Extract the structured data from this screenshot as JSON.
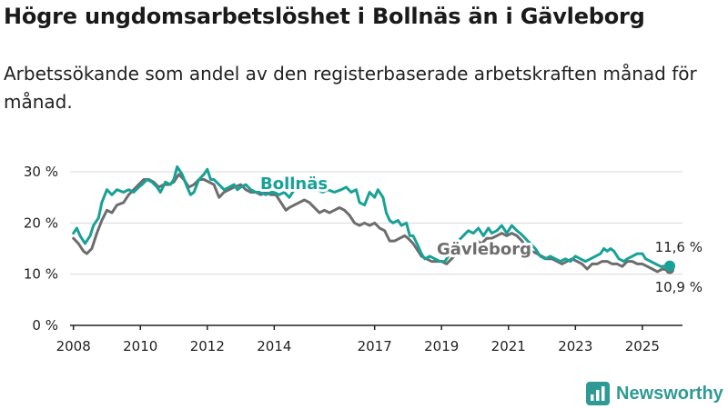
{
  "title": "Högre ungdomsarbetslöshet i Bollnäs än i Gävleborg",
  "subtitle": "Arbetssökande som andel av den registerbaserade arbetskraften månad för månad.",
  "brand": {
    "name": "Newsworthy",
    "icon": "newsworthy-bar-chart-icon"
  },
  "colors": {
    "bollnas": "#17a197",
    "gavleborg": "#6d6d6d",
    "grid": "#d9d9d9",
    "axis": "#222222",
    "text": "#222222"
  },
  "chart_data": {
    "type": "line",
    "title": "Högre ungdomsarbetslöshet i Bollnäs än i Gävleborg",
    "xlabel": "",
    "ylabel": "",
    "xlim": [
      2007.9,
      2026.2
    ],
    "ylim": [
      0,
      30
    ],
    "grid": true,
    "yticks": [
      0,
      10,
      20,
      30
    ],
    "ytick_labels": [
      "0 %",
      "10 %",
      "20 %",
      "30 %"
    ],
    "xticks": [
      2008,
      2010,
      2012,
      2014,
      2017,
      2019,
      2021,
      2023,
      2025
    ],
    "xtick_labels": [
      "2008",
      "2010",
      "2012",
      "2014",
      "2017",
      "2019",
      "2021",
      "2023",
      "2025"
    ],
    "series": [
      {
        "name": "Bollnäs",
        "label": "Bollnäs",
        "end_label": "11,6 %",
        "points": [
          [
            2008.0,
            18.0
          ],
          [
            2008.1,
            19.0
          ],
          [
            2008.2,
            17.5
          ],
          [
            2008.35,
            16.0
          ],
          [
            2008.5,
            17.5
          ],
          [
            2008.6,
            19.5
          ],
          [
            2008.75,
            21.0
          ],
          [
            2008.85,
            24.0
          ],
          [
            2009.0,
            26.5
          ],
          [
            2009.15,
            25.5
          ],
          [
            2009.3,
            26.5
          ],
          [
            2009.5,
            26.0
          ],
          [
            2009.65,
            26.5
          ],
          [
            2009.8,
            26.0
          ],
          [
            2009.95,
            27.0
          ],
          [
            2010.05,
            27.5
          ],
          [
            2010.2,
            28.5
          ],
          [
            2010.35,
            28.0
          ],
          [
            2010.5,
            27.0
          ],
          [
            2010.6,
            26.0
          ],
          [
            2010.75,
            28.0
          ],
          [
            2010.9,
            27.5
          ],
          [
            2011.0,
            28.5
          ],
          [
            2011.1,
            31.0
          ],
          [
            2011.25,
            29.5
          ],
          [
            2011.4,
            27.0
          ],
          [
            2011.5,
            25.5
          ],
          [
            2011.6,
            26.0
          ],
          [
            2011.75,
            28.5
          ],
          [
            2011.9,
            29.5
          ],
          [
            2012.0,
            30.5
          ],
          [
            2012.1,
            28.5
          ],
          [
            2012.2,
            28.5
          ],
          [
            2012.35,
            27.5
          ],
          [
            2012.5,
            26.5
          ],
          [
            2012.65,
            27.0
          ],
          [
            2012.8,
            27.5
          ],
          [
            2012.9,
            26.5
          ],
          [
            2013.0,
            27.0
          ],
          [
            2013.15,
            27.5
          ],
          [
            2013.3,
            26.5
          ],
          [
            2013.45,
            26.0
          ],
          [
            2013.6,
            26.0
          ],
          [
            2013.75,
            25.5
          ],
          [
            2013.9,
            26.0
          ],
          [
            2014.0,
            26.0
          ],
          [
            2014.15,
            25.5
          ],
          [
            2014.3,
            26.0
          ],
          [
            2014.45,
            25.0
          ],
          [
            2014.55,
            26.0
          ],
          [
            2014.7,
            27.5
          ],
          [
            2014.85,
            28.0
          ],
          [
            2015.0,
            27.5
          ],
          [
            2015.15,
            27.0
          ],
          [
            2015.3,
            26.5
          ],
          [
            2015.45,
            26.0
          ],
          [
            2015.6,
            26.5
          ],
          [
            2015.8,
            26.0
          ],
          [
            2016.0,
            26.5
          ],
          [
            2016.15,
            27.0
          ],
          [
            2016.3,
            26.0
          ],
          [
            2016.45,
            26.5
          ],
          [
            2016.55,
            24.0
          ],
          [
            2016.7,
            23.5
          ],
          [
            2016.85,
            26.0
          ],
          [
            2017.0,
            25.0
          ],
          [
            2017.1,
            26.5
          ],
          [
            2017.25,
            25.0
          ],
          [
            2017.35,
            22.0
          ],
          [
            2017.45,
            20.5
          ],
          [
            2017.55,
            20.0
          ],
          [
            2017.7,
            20.5
          ],
          [
            2017.8,
            19.5
          ],
          [
            2017.95,
            20.0
          ],
          [
            2018.05,
            17.5
          ],
          [
            2018.15,
            17.5
          ],
          [
            2018.3,
            15.5
          ],
          [
            2018.4,
            14.0
          ],
          [
            2018.5,
            13.0
          ],
          [
            2018.65,
            13.5
          ],
          [
            2018.8,
            13.0
          ],
          [
            2018.95,
            12.5
          ],
          [
            2019.1,
            12.5
          ],
          [
            2019.2,
            13.5
          ],
          [
            2019.35,
            15.0
          ],
          [
            2019.5,
            16.5
          ],
          [
            2019.65,
            17.5
          ],
          [
            2019.8,
            18.5
          ],
          [
            2019.95,
            18.0
          ],
          [
            2020.1,
            19.0
          ],
          [
            2020.25,
            17.5
          ],
          [
            2020.4,
            19.0
          ],
          [
            2020.5,
            18.0
          ],
          [
            2020.65,
            18.5
          ],
          [
            2020.8,
            19.5
          ],
          [
            2020.95,
            18.0
          ],
          [
            2021.1,
            19.5
          ],
          [
            2021.25,
            18.5
          ],
          [
            2021.35,
            18.0
          ],
          [
            2021.5,
            17.0
          ],
          [
            2021.65,
            16.0
          ],
          [
            2021.8,
            15.0
          ],
          [
            2021.95,
            13.5
          ],
          [
            2022.1,
            13.0
          ],
          [
            2022.25,
            13.5
          ],
          [
            2022.4,
            13.0
          ],
          [
            2022.55,
            12.5
          ],
          [
            2022.7,
            13.0
          ],
          [
            2022.85,
            12.5
          ],
          [
            2023.0,
            13.5
          ],
          [
            2023.15,
            13.0
          ],
          [
            2023.3,
            12.5
          ],
          [
            2023.45,
            13.0
          ],
          [
            2023.6,
            13.5
          ],
          [
            2023.75,
            14.0
          ],
          [
            2023.85,
            15.0
          ],
          [
            2023.95,
            14.5
          ],
          [
            2024.05,
            15.0
          ],
          [
            2024.15,
            14.5
          ],
          [
            2024.3,
            13.0
          ],
          [
            2024.45,
            12.5
          ],
          [
            2024.55,
            13.0
          ],
          [
            2024.7,
            13.5
          ],
          [
            2024.85,
            14.0
          ],
          [
            2025.0,
            14.0
          ],
          [
            2025.1,
            13.0
          ],
          [
            2025.25,
            12.5
          ],
          [
            2025.4,
            12.0
          ],
          [
            2025.55,
            11.5
          ],
          [
            2025.7,
            11.6
          ],
          [
            2025.82,
            11.6
          ]
        ]
      },
      {
        "name": "Gävleborg",
        "label": "Gävleborg",
        "end_label": "10,9 %",
        "points": [
          [
            2008.0,
            17.0
          ],
          [
            2008.15,
            16.0
          ],
          [
            2008.3,
            14.5
          ],
          [
            2008.4,
            14.0
          ],
          [
            2008.55,
            15.0
          ],
          [
            2008.7,
            18.0
          ],
          [
            2008.85,
            20.5
          ],
          [
            2009.0,
            22.5
          ],
          [
            2009.15,
            22.0
          ],
          [
            2009.3,
            23.5
          ],
          [
            2009.5,
            24.0
          ],
          [
            2009.65,
            25.5
          ],
          [
            2009.8,
            26.5
          ],
          [
            2009.95,
            27.5
          ],
          [
            2010.1,
            28.5
          ],
          [
            2010.25,
            28.5
          ],
          [
            2010.4,
            28.0
          ],
          [
            2010.55,
            27.0
          ],
          [
            2010.7,
            27.5
          ],
          [
            2010.85,
            27.5
          ],
          [
            2011.0,
            28.0
          ],
          [
            2011.15,
            29.5
          ],
          [
            2011.3,
            28.5
          ],
          [
            2011.45,
            27.0
          ],
          [
            2011.6,
            27.5
          ],
          [
            2011.75,
            28.5
          ],
          [
            2011.9,
            28.5
          ],
          [
            2012.05,
            28.0
          ],
          [
            2012.2,
            27.5
          ],
          [
            2012.35,
            25.0
          ],
          [
            2012.5,
            26.0
          ],
          [
            2012.65,
            26.5
          ],
          [
            2012.8,
            27.0
          ],
          [
            2013.0,
            27.5
          ],
          [
            2013.15,
            26.5
          ],
          [
            2013.3,
            26.0
          ],
          [
            2013.45,
            26.0
          ],
          [
            2013.6,
            25.5
          ],
          [
            2013.75,
            26.0
          ],
          [
            2013.9,
            25.5
          ],
          [
            2014.05,
            25.5
          ],
          [
            2014.2,
            24.0
          ],
          [
            2014.35,
            22.5
          ],
          [
            2014.45,
            23.0
          ],
          [
            2014.6,
            23.5
          ],
          [
            2014.75,
            24.0
          ],
          [
            2014.9,
            24.5
          ],
          [
            2015.05,
            24.0
          ],
          [
            2015.2,
            23.0
          ],
          [
            2015.35,
            22.0
          ],
          [
            2015.5,
            22.5
          ],
          [
            2015.65,
            22.0
          ],
          [
            2015.8,
            22.5
          ],
          [
            2015.95,
            23.0
          ],
          [
            2016.1,
            22.5
          ],
          [
            2016.25,
            21.5
          ],
          [
            2016.4,
            20.0
          ],
          [
            2016.55,
            19.5
          ],
          [
            2016.7,
            20.0
          ],
          [
            2016.85,
            19.5
          ],
          [
            2017.0,
            20.0
          ],
          [
            2017.15,
            19.0
          ],
          [
            2017.3,
            18.5
          ],
          [
            2017.45,
            16.5
          ],
          [
            2017.6,
            16.5
          ],
          [
            2017.75,
            17.0
          ],
          [
            2017.9,
            17.5
          ],
          [
            2018.0,
            17.0
          ],
          [
            2018.15,
            16.0
          ],
          [
            2018.3,
            14.5
          ],
          [
            2018.4,
            13.5
          ],
          [
            2018.55,
            13.0
          ],
          [
            2018.7,
            12.5
          ],
          [
            2018.85,
            12.5
          ],
          [
            2019.0,
            12.5
          ],
          [
            2019.15,
            12.0
          ],
          [
            2019.3,
            13.0
          ],
          [
            2019.45,
            14.0
          ],
          [
            2019.6,
            15.0
          ],
          [
            2019.75,
            15.5
          ],
          [
            2019.9,
            16.0
          ],
          [
            2020.05,
            16.5
          ],
          [
            2020.2,
            16.0
          ],
          [
            2020.35,
            17.0
          ],
          [
            2020.5,
            17.0
          ],
          [
            2020.65,
            17.5
          ],
          [
            2020.8,
            18.0
          ],
          [
            2020.95,
            17.5
          ],
          [
            2021.1,
            18.0
          ],
          [
            2021.25,
            17.5
          ],
          [
            2021.4,
            16.5
          ],
          [
            2021.55,
            15.0
          ],
          [
            2021.7,
            14.5
          ],
          [
            2021.85,
            14.0
          ],
          [
            2022.0,
            13.5
          ],
          [
            2022.15,
            13.0
          ],
          [
            2022.3,
            13.0
          ],
          [
            2022.45,
            12.5
          ],
          [
            2022.6,
            12.0
          ],
          [
            2022.75,
            12.5
          ],
          [
            2022.9,
            13.0
          ],
          [
            2023.05,
            12.5
          ],
          [
            2023.2,
            12.0
          ],
          [
            2023.35,
            11.0
          ],
          [
            2023.5,
            12.0
          ],
          [
            2023.65,
            12.0
          ],
          [
            2023.8,
            12.5
          ],
          [
            2023.95,
            12.5
          ],
          [
            2024.1,
            12.0
          ],
          [
            2024.25,
            12.0
          ],
          [
            2024.4,
            11.5
          ],
          [
            2024.55,
            12.5
          ],
          [
            2024.7,
            12.5
          ],
          [
            2024.85,
            12.0
          ],
          [
            2025.0,
            12.0
          ],
          [
            2025.15,
            11.5
          ],
          [
            2025.3,
            11.0
          ],
          [
            2025.45,
            10.5
          ],
          [
            2025.6,
            11.0
          ],
          [
            2025.7,
            10.9
          ],
          [
            2025.82,
            10.9
          ]
        ]
      }
    ]
  }
}
